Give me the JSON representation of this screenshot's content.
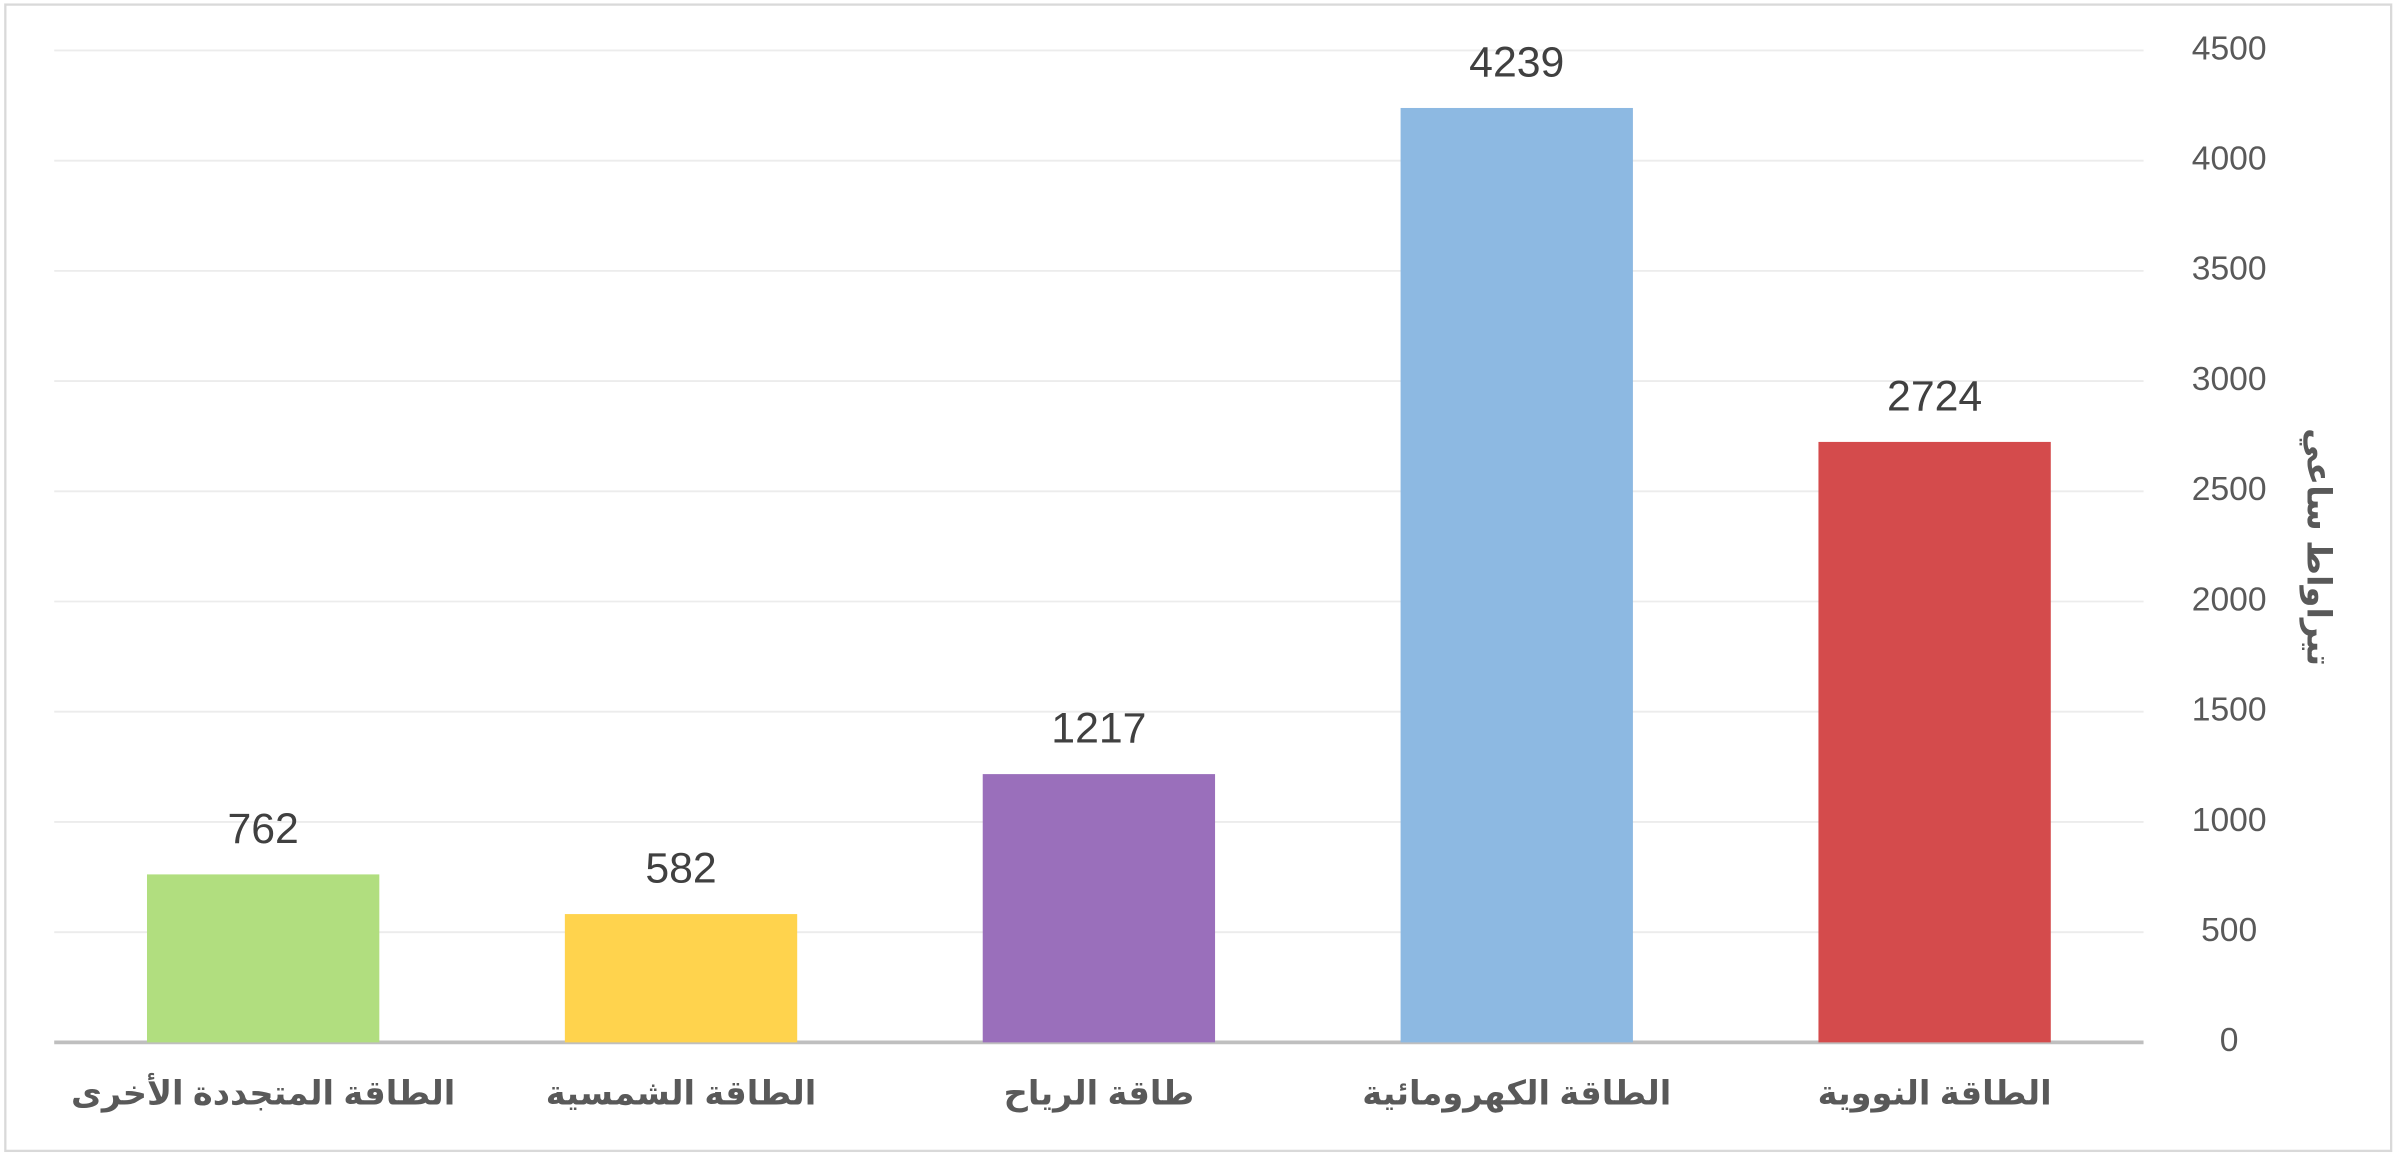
{
  "chart_data": {
    "type": "bar",
    "y_axis_label": "تيراواط ساعي",
    "categories": [
      "الطاقة النووية",
      "الطاقة الكهرومائية",
      "طاقة الرياح",
      "الطاقة الشمسية",
      "الطاقة المتجددة الأخرى"
    ],
    "values": [
      2724,
      4239,
      1217,
      582,
      762
    ],
    "colors": [
      "#d44b4c",
      "#8db9e2",
      "#9a6fbb",
      "#ffd34d",
      "#b1de7f"
    ],
    "ylim": [
      0,
      4500
    ],
    "yticks": [
      0,
      500,
      1000,
      1500,
      2000,
      2500,
      3000,
      3500,
      4000,
      4500
    ],
    "grid": true,
    "y_axis_side": "right",
    "direction": "rtl"
  }
}
